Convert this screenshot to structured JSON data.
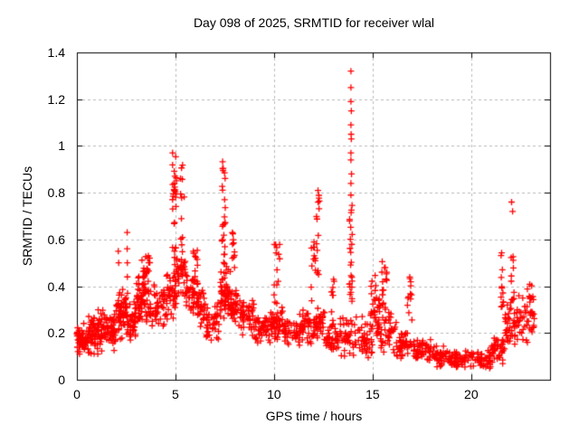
{
  "window": {
    "background": "#ffffff"
  },
  "chart_data": {
    "type": "scatter",
    "title": "Day 098 of 2025, SRMTID for receiver wlal",
    "xlabel": "GPS time / hours",
    "ylabel": "SRMTID / TECUs",
    "xlim": [
      0,
      24
    ],
    "ylim": [
      0,
      1.4
    ],
    "xtick_values": [
      0,
      5,
      10,
      15,
      20
    ],
    "xtick_labels": [
      "0",
      "5",
      "10",
      "15",
      "20"
    ],
    "ytick_values": [
      0,
      0.2,
      0.4,
      0.6,
      0.8,
      1.0,
      1.2,
      1.4
    ],
    "ytick_labels": [
      "0",
      "0.2",
      "0.4",
      "0.6",
      "0.8",
      "1",
      "1.2",
      "1.4"
    ],
    "grid": true,
    "grid_color": "#b8b8b8",
    "grid_dash": [
      3,
      3
    ],
    "axis_color": "#000000",
    "marker": "plus",
    "marker_color": "#ff0000",
    "marker_size_px": 7,
    "legend": "none",
    "notable_points": [
      [
        13.9,
        1.32
      ],
      [
        13.9,
        1.25
      ],
      [
        13.9,
        1.19
      ],
      [
        13.92,
        1.15
      ],
      [
        13.9,
        1.09
      ],
      [
        13.91,
        1.05
      ],
      [
        13.92,
        1.03
      ],
      [
        13.9,
        0.97
      ],
      [
        13.9,
        0.94
      ],
      [
        13.93,
        0.88
      ],
      [
        13.9,
        0.84
      ],
      [
        13.9,
        0.79
      ],
      [
        22.05,
        0.76
      ],
      [
        22.1,
        0.72
      ],
      [
        2.55,
        0.63
      ],
      [
        2.55,
        0.56
      ],
      [
        2.56,
        0.5
      ],
      [
        2.56,
        0.44
      ],
      [
        2.57,
        0.37
      ],
      [
        2.1,
        0.55
      ],
      [
        2.12,
        0.5
      ]
    ],
    "cluster_format": [
      "x_min_hours",
      "x_max_hours",
      "y_min_tecu",
      "y_max_tecu",
      "point_count",
      "kind_0_blob_1_streak"
    ],
    "clusters": [
      [
        0.0,
        0.5,
        0.09,
        0.25,
        55,
        0
      ],
      [
        0.5,
        1.0,
        0.1,
        0.28,
        50,
        0
      ],
      [
        1.0,
        1.5,
        0.1,
        0.32,
        45,
        0
      ],
      [
        1.5,
        2.0,
        0.12,
        0.3,
        45,
        0
      ],
      [
        2.0,
        2.5,
        0.15,
        0.42,
        50,
        0
      ],
      [
        2.5,
        3.0,
        0.15,
        0.35,
        45,
        0
      ],
      [
        3.0,
        3.5,
        0.2,
        0.45,
        50,
        0
      ],
      [
        3.3,
        3.7,
        0.35,
        0.55,
        25,
        0
      ],
      [
        3.5,
        4.5,
        0.2,
        0.42,
        60,
        0
      ],
      [
        4.5,
        5.0,
        0.25,
        0.5,
        40,
        0
      ],
      [
        5.0,
        5.5,
        0.3,
        0.6,
        35,
        0
      ],
      [
        5.5,
        6.0,
        0.25,
        0.5,
        35,
        0
      ],
      [
        6.0,
        6.5,
        0.2,
        0.45,
        30,
        0
      ],
      [
        6.5,
        7.2,
        0.15,
        0.35,
        40,
        0
      ],
      [
        7.2,
        7.8,
        0.22,
        0.5,
        35,
        0
      ],
      [
        7.8,
        8.3,
        0.2,
        0.4,
        35,
        0
      ],
      [
        8.3,
        9.0,
        0.18,
        0.35,
        45,
        0
      ],
      [
        9.0,
        9.8,
        0.15,
        0.3,
        45,
        0
      ],
      [
        9.8,
        10.5,
        0.15,
        0.32,
        45,
        0
      ],
      [
        10.5,
        11.3,
        0.13,
        0.28,
        45,
        0
      ],
      [
        11.3,
        12.0,
        0.15,
        0.3,
        40,
        0
      ],
      [
        12.0,
        12.6,
        0.15,
        0.32,
        35,
        0
      ],
      [
        12.6,
        13.3,
        0.08,
        0.25,
        40,
        0
      ],
      [
        13.3,
        14.2,
        0.08,
        0.3,
        45,
        0
      ],
      [
        14.2,
        15.0,
        0.08,
        0.28,
        45,
        0
      ],
      [
        15.0,
        15.4,
        0.15,
        0.4,
        25,
        0
      ],
      [
        15.4,
        16.2,
        0.1,
        0.3,
        40,
        0
      ],
      [
        16.2,
        17.0,
        0.08,
        0.22,
        40,
        0
      ],
      [
        17.0,
        18.0,
        0.06,
        0.18,
        50,
        0
      ],
      [
        18.0,
        19.0,
        0.05,
        0.15,
        50,
        0
      ],
      [
        19.0,
        20.0,
        0.04,
        0.13,
        50,
        0
      ],
      [
        20.0,
        21.0,
        0.04,
        0.13,
        50,
        0
      ],
      [
        21.0,
        21.7,
        0.06,
        0.2,
        40,
        0
      ],
      [
        21.7,
        22.4,
        0.1,
        0.35,
        45,
        0
      ],
      [
        22.4,
        23.2,
        0.15,
        0.42,
        50,
        0
      ],
      [
        4.85,
        5.05,
        0.45,
        0.98,
        28,
        1
      ],
      [
        5.25,
        5.45,
        0.45,
        0.93,
        18,
        1
      ],
      [
        5.9,
        6.15,
        0.4,
        0.62,
        14,
        1
      ],
      [
        7.35,
        7.55,
        0.5,
        0.95,
        22,
        1
      ],
      [
        7.3,
        7.7,
        0.25,
        0.55,
        25,
        0
      ],
      [
        7.85,
        8.0,
        0.45,
        0.63,
        10,
        1
      ],
      [
        9.95,
        10.3,
        0.32,
        0.58,
        14,
        1
      ],
      [
        11.85,
        12.1,
        0.3,
        0.6,
        12,
        1
      ],
      [
        12.15,
        12.3,
        0.45,
        0.81,
        14,
        1
      ],
      [
        12.9,
        13.05,
        0.25,
        0.43,
        10,
        1
      ],
      [
        13.82,
        13.98,
        0.3,
        0.75,
        24,
        1
      ],
      [
        14.9,
        15.2,
        0.25,
        0.45,
        14,
        1
      ],
      [
        15.45,
        15.55,
        0.3,
        0.52,
        10,
        1
      ],
      [
        15.6,
        15.75,
        0.3,
        0.5,
        8,
        1
      ],
      [
        16.75,
        17.0,
        0.25,
        0.46,
        12,
        1
      ],
      [
        21.5,
        21.65,
        0.3,
        0.55,
        12,
        1
      ],
      [
        22.0,
        22.2,
        0.3,
        0.55,
        10,
        1
      ]
    ]
  }
}
